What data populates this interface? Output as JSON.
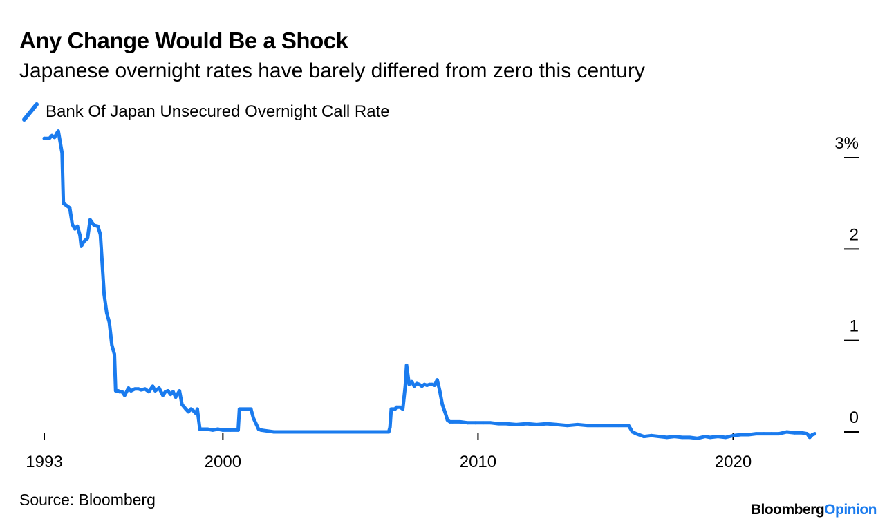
{
  "header": {
    "title": "Any Change Would Be a Shock",
    "subtitle": "Japanese overnight rates have barely differed from zero this century"
  },
  "footer": {
    "source": "Source: Bloomberg",
    "brand_primary": "Bloomberg",
    "brand_secondary": "Opinion"
  },
  "colors": {
    "series": "#1a7bee",
    "axis": "#000000",
    "brand_accent": "#1a7bee"
  },
  "chart_data": {
    "type": "line",
    "title": "Any Change Would Be a Shock",
    "subtitle": "Japanese overnight rates have barely differed from zero this century",
    "xlabel": "",
    "ylabel": "",
    "y_unit_suffix": "%",
    "xlim": [
      1993,
      2023.4
    ],
    "ylim": [
      0,
      3
    ],
    "grid": false,
    "legend_position": "top-left",
    "x_ticks": [
      {
        "value": 1993,
        "label": "1993"
      },
      {
        "value": 2000,
        "label": "2000"
      },
      {
        "value": 2010,
        "label": "2010"
      },
      {
        "value": 2020,
        "label": "2020"
      }
    ],
    "y_ticks": [
      {
        "value": 3,
        "label": "3%"
      },
      {
        "value": 2,
        "label": "2"
      },
      {
        "value": 1,
        "label": "1"
      },
      {
        "value": 0,
        "label": "0"
      }
    ],
    "series": [
      {
        "name": "Bank Of Japan Unsecured Overnight Call Rate",
        "x": [
          1993.0,
          1993.2,
          1993.3,
          1993.4,
          1993.5,
          1993.55,
          1993.7,
          1993.75,
          1993.9,
          1994.0,
          1994.1,
          1994.2,
          1994.3,
          1994.4,
          1994.45,
          1994.55,
          1994.7,
          1994.8,
          1994.95,
          1995.1,
          1995.2,
          1995.35,
          1995.45,
          1995.55,
          1995.65,
          1995.75,
          1995.8,
          1995.9,
          1995.95,
          1996.05,
          1996.15,
          1996.3,
          1996.4,
          1996.55,
          1996.7,
          1996.8,
          1996.95,
          1997.1,
          1997.25,
          1997.35,
          1997.5,
          1997.65,
          1997.75,
          1997.85,
          1997.95,
          1998.05,
          1998.15,
          1998.3,
          1998.4,
          1998.55,
          1998.65,
          1998.75,
          1998.85,
          1998.95,
          1999.0,
          1999.1,
          1999.2,
          1999.4,
          1999.6,
          1999.8,
          2000.0,
          2000.3,
          2000.6,
          2000.65,
          2001.0,
          2001.1,
          2001.2,
          2001.4,
          2001.5,
          2002.0,
          2004.0,
          2006.0,
          2006.5,
          2006.55,
          2006.6,
          2006.75,
          2006.8,
          2006.95,
          2007.05,
          2007.15,
          2007.2,
          2007.3,
          2007.4,
          2007.5,
          2007.6,
          2007.7,
          2007.8,
          2007.9,
          2008.0,
          2008.1,
          2008.2,
          2008.3,
          2008.4,
          2008.5,
          2008.6,
          2008.75,
          2008.8,
          2008.9,
          2009.0,
          2009.3,
          2009.6,
          2009.9,
          2010.2,
          2010.5,
          2010.8,
          2011.1,
          2011.5,
          2011.9,
          2012.3,
          2012.7,
          2013.1,
          2013.5,
          2013.9,
          2014.3,
          2014.7,
          2015.1,
          2015.5,
          2015.9,
          2016.05,
          2016.2,
          2016.5,
          2016.8,
          2017.1,
          2017.4,
          2017.7,
          2018.0,
          2018.3,
          2018.6,
          2018.9,
          2019.1,
          2019.4,
          2019.7,
          2020.0,
          2020.3,
          2020.6,
          2020.9,
          2021.2,
          2021.5,
          2021.8,
          2022.1,
          2022.4,
          2022.7,
          2022.9,
          2023.0,
          2023.1,
          2023.2
        ],
        "values": [
          3.21,
          3.21,
          3.24,
          3.22,
          3.27,
          3.29,
          3.05,
          2.5,
          2.47,
          2.45,
          2.27,
          2.22,
          2.25,
          2.15,
          2.03,
          2.08,
          2.12,
          2.32,
          2.26,
          2.25,
          2.16,
          1.5,
          1.3,
          1.2,
          0.95,
          0.85,
          0.45,
          0.45,
          0.44,
          0.44,
          0.4,
          0.48,
          0.45,
          0.47,
          0.47,
          0.46,
          0.47,
          0.44,
          0.5,
          0.45,
          0.48,
          0.4,
          0.44,
          0.45,
          0.41,
          0.44,
          0.38,
          0.45,
          0.3,
          0.25,
          0.22,
          0.25,
          0.23,
          0.2,
          0.25,
          0.03,
          0.03,
          0.03,
          0.02,
          0.03,
          0.02,
          0.02,
          0.02,
          0.25,
          0.25,
          0.25,
          0.15,
          0.03,
          0.02,
          0.0,
          0.0,
          0.0,
          0.0,
          0.05,
          0.25,
          0.25,
          0.27,
          0.27,
          0.25,
          0.5,
          0.73,
          0.52,
          0.55,
          0.5,
          0.53,
          0.52,
          0.5,
          0.52,
          0.51,
          0.52,
          0.52,
          0.51,
          0.57,
          0.45,
          0.3,
          0.18,
          0.13,
          0.11,
          0.11,
          0.11,
          0.1,
          0.1,
          0.1,
          0.1,
          0.09,
          0.09,
          0.08,
          0.09,
          0.08,
          0.09,
          0.08,
          0.07,
          0.08,
          0.07,
          0.07,
          0.07,
          0.07,
          0.07,
          0.0,
          -0.02,
          -0.05,
          -0.04,
          -0.05,
          -0.06,
          -0.05,
          -0.06,
          -0.06,
          -0.07,
          -0.05,
          -0.06,
          -0.05,
          -0.06,
          -0.04,
          -0.03,
          -0.03,
          -0.02,
          -0.02,
          -0.02,
          -0.02,
          0.0,
          -0.01,
          -0.01,
          -0.02,
          -0.06,
          -0.03,
          -0.02
        ]
      }
    ]
  }
}
